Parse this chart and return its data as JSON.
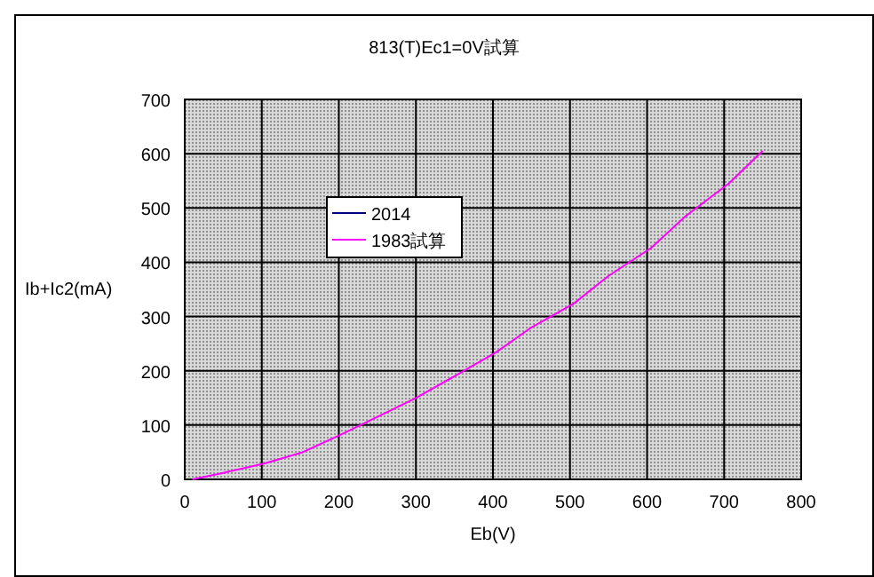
{
  "chart_data": {
    "type": "line",
    "title": "813(T)Ec1=0V試算",
    "xlabel": "Eb(V)",
    "ylabel": "Ib+Ic2(mA)",
    "x": [
      10,
      50,
      103,
      153,
      205,
      250,
      300,
      350,
      404,
      450,
      505,
      550,
      605,
      650,
      706,
      750
    ],
    "series": [
      {
        "name": "2014",
        "color": "#000080",
        "values": [
          null,
          null,
          null,
          null,
          null,
          null,
          null,
          null,
          null,
          null,
          null,
          null,
          null,
          null,
          null,
          null
        ]
      },
      {
        "name": "1983試算",
        "color": "#ff00ff",
        "values": [
          0,
          12,
          29,
          50,
          84,
          115,
          150,
          190,
          234,
          280,
          324,
          375,
          426,
          485,
          545,
          605
        ]
      }
    ],
    "xlim": [
      0,
      800
    ],
    "xticks": [
      0,
      100,
      200,
      300,
      400,
      500,
      600,
      700,
      800
    ],
    "ylim": [
      0,
      700
    ],
    "yticks": [
      0,
      100,
      200,
      300,
      400,
      500,
      600,
      700
    ],
    "grid": true,
    "legend": "top left",
    "marker": "none",
    "line_style": "solid"
  }
}
